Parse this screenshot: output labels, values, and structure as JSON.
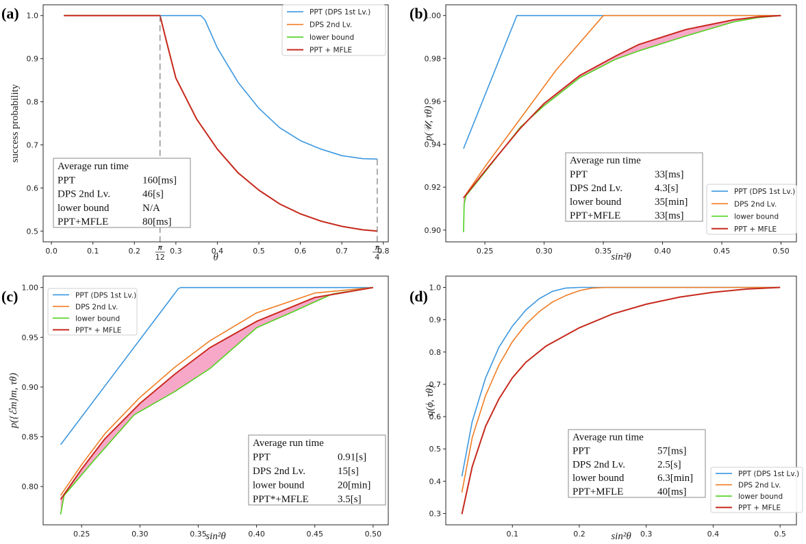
{
  "colors": {
    "ppt": "#3b97e0",
    "dps": "#f07b22",
    "lower": "#4fd11e",
    "mfle": "#c8281e",
    "shade": "#f7a8c8"
  },
  "chart_data": [
    {
      "panel": "(a)",
      "type": "line",
      "xlabel": "θ",
      "ylabel": "success probability",
      "xlim": [
        -0.02,
        0.812
      ],
      "ylim": [
        0.475,
        1.025
      ],
      "xticks": [
        0.0,
        0.1,
        0.2,
        0.3,
        0.4,
        0.5,
        0.6,
        0.7,
        0.8
      ],
      "yticks": [
        0.5,
        0.6,
        0.7,
        0.8,
        0.9,
        1.0
      ],
      "xtick_labels": [
        "0.0",
        "0.1",
        "0.2",
        "0.3",
        "0.4",
        "0.5",
        "0.6",
        "0.7",
        "0.8"
      ],
      "ytick_labels": [
        "0.5",
        "0.6",
        "0.7",
        "0.8",
        "0.9",
        "1.0"
      ],
      "special_ticks": [
        {
          "x": 0.2618,
          "label": "π/12"
        },
        {
          "x": 0.7854,
          "label": "π/4"
        }
      ],
      "legend_position": "top-right",
      "legend": [
        "PPT (DPS 1st Lv.)",
        "DPS 2nd Lv.",
        "lower bound",
        "PPT + MFLE"
      ],
      "series": [
        {
          "name": "PPT (DPS 1st Lv.)",
          "color_key": "ppt",
          "x": [
            0.03,
            0.2618,
            0.36,
            0.37,
            0.4,
            0.45,
            0.5,
            0.55,
            0.6,
            0.65,
            0.7,
            0.75,
            0.7854
          ],
          "y": [
            1.0,
            1.0,
            1.0,
            0.99,
            0.925,
            0.845,
            0.785,
            0.74,
            0.71,
            0.69,
            0.675,
            0.668,
            0.667
          ]
        },
        {
          "name": "DPS 2nd Lv.",
          "color_key": "dps",
          "x": [
            0.03,
            0.2618,
            0.28,
            0.3,
            0.35,
            0.4,
            0.45,
            0.5,
            0.55,
            0.6,
            0.65,
            0.7,
            0.75,
            0.7854
          ],
          "y": [
            1.0,
            1.0,
            0.93,
            0.855,
            0.76,
            0.69,
            0.635,
            0.595,
            0.563,
            0.54,
            0.523,
            0.511,
            0.503,
            0.5
          ]
        },
        {
          "name": "lower bound",
          "color_key": "lower",
          "x": [
            0.03,
            0.2618,
            0.28,
            0.3,
            0.35,
            0.4,
            0.45,
            0.5,
            0.55,
            0.6,
            0.65,
            0.7,
            0.75,
            0.7854
          ],
          "y": [
            1.0,
            1.0,
            0.93,
            0.855,
            0.76,
            0.69,
            0.635,
            0.595,
            0.563,
            0.54,
            0.523,
            0.511,
            0.503,
            0.5
          ]
        },
        {
          "name": "PPT + MFLE",
          "color_key": "mfle",
          "x": [
            0.03,
            0.2618,
            0.28,
            0.3,
            0.35,
            0.4,
            0.45,
            0.5,
            0.55,
            0.6,
            0.65,
            0.7,
            0.75,
            0.7854
          ],
          "y": [
            1.0,
            1.0,
            0.93,
            0.855,
            0.76,
            0.69,
            0.635,
            0.595,
            0.563,
            0.54,
            0.523,
            0.511,
            0.503,
            0.5
          ]
        }
      ],
      "dashed_markers": [
        {
          "x": 0.2618,
          "y_top": 1.0
        },
        {
          "x": 0.7854,
          "y_top": 0.667
        }
      ],
      "runtime_table": {
        "title": "Average run time",
        "position": "bottom-left",
        "rows": [
          [
            "PPT",
            "160[ms]"
          ],
          [
            "DPS 2nd Lv.",
            "46[s]"
          ],
          [
            "lower bound",
            "N/A"
          ],
          [
            "PPT+MFLE",
            "80[ms]"
          ]
        ]
      }
    },
    {
      "panel": "(b)",
      "type": "line",
      "xlabel": "sin²θ",
      "ylabel": "p(𝒰, τθ)",
      "xlim": [
        0.217,
        0.513
      ],
      "ylim": [
        0.8945,
        1.005
      ],
      "xticks": [
        0.25,
        0.3,
        0.35,
        0.4,
        0.45,
        0.5
      ],
      "yticks": [
        0.9,
        0.92,
        0.94,
        0.96,
        0.98,
        1.0
      ],
      "xtick_labels": [
        "0.25",
        "0.30",
        "0.35",
        "0.40",
        "0.45",
        "0.50"
      ],
      "ytick_labels": [
        "0.90",
        "0.92",
        "0.94",
        "0.96",
        "0.98",
        "1.00"
      ],
      "legend_position": "bottom-right",
      "legend": [
        "PPT (DPS 1st Lv.)",
        "DPS 2nd Lv.",
        "lower bound",
        "PPT + MFLE"
      ],
      "shaded_between": [
        "PPT + MFLE",
        "lower bound"
      ],
      "series": [
        {
          "name": "PPT (DPS 1st Lv.)",
          "color_key": "ppt",
          "x": [
            0.232,
            0.277,
            0.5
          ],
          "y": [
            0.938,
            1.0,
            1.0
          ]
        },
        {
          "name": "DPS 2nd Lv.",
          "color_key": "dps",
          "x": [
            0.232,
            0.25,
            0.28,
            0.31,
            0.35,
            0.4,
            0.45,
            0.5
          ],
          "y": [
            0.915,
            0.9295,
            0.952,
            0.9745,
            1.0,
            1.0,
            1.0,
            1.0
          ]
        },
        {
          "name": "lower bound",
          "color_key": "lower",
          "x": [
            0.232,
            0.2325,
            0.234,
            0.25,
            0.28,
            0.3,
            0.33,
            0.36,
            0.38,
            0.42,
            0.46,
            0.48,
            0.5
          ],
          "y": [
            0.899,
            0.912,
            0.916,
            0.927,
            0.948,
            0.958,
            0.971,
            0.9795,
            0.9835,
            0.9905,
            0.997,
            0.999,
            1.0
          ]
        },
        {
          "name": "PPT + MFLE",
          "color_key": "mfle",
          "x": [
            0.232,
            0.25,
            0.28,
            0.3,
            0.33,
            0.36,
            0.38,
            0.42,
            0.46,
            0.48,
            0.5
          ],
          "y": [
            0.915,
            0.9275,
            0.9475,
            0.959,
            0.972,
            0.981,
            0.9865,
            0.9935,
            0.998,
            0.9993,
            1.0
          ]
        }
      ],
      "runtime_table": {
        "title": "Average run time",
        "position": "center-right",
        "rows": [
          [
            "PPT",
            "33[ms]"
          ],
          [
            "DPS 2nd Lv.",
            "4.3[s]"
          ],
          [
            "lower bound",
            "35[min]"
          ],
          [
            "PPT+MFLE",
            "33[ms]"
          ]
        ]
      }
    },
    {
      "panel": "(c)",
      "type": "line",
      "xlabel": "sin²θ",
      "ylabel": "p({ℰm}m, τθ)",
      "xlim": [
        0.217,
        0.513
      ],
      "ylim": [
        0.7615,
        1.0115
      ],
      "xticks": [
        0.25,
        0.3,
        0.35,
        0.4,
        0.45,
        0.5
      ],
      "yticks": [
        0.8,
        0.85,
        0.9,
        0.95,
        1.0
      ],
      "xtick_labels": [
        "0.25",
        "0.30",
        "0.35",
        "0.40",
        "0.45",
        "0.50"
      ],
      "ytick_labels": [
        "0.80",
        "0.85",
        "0.90",
        "0.95",
        "1.00"
      ],
      "legend_position": "top-left",
      "legend": [
        "PPT (DPS 1st Lv.)",
        "DPS 2nd Lv.",
        "lower bound",
        "PPT* + MFLE"
      ],
      "shaded_between": [
        "PPT* + MFLE",
        "lower bound"
      ],
      "series": [
        {
          "name": "PPT (DPS 1st Lv.)",
          "color_key": "ppt",
          "x": [
            0.232,
            0.333,
            0.335,
            0.5
          ],
          "y": [
            0.842,
            0.999,
            1.0,
            1.0
          ]
        },
        {
          "name": "DPS 2nd Lv.",
          "color_key": "dps",
          "x": [
            0.232,
            0.25,
            0.27,
            0.3,
            0.33,
            0.36,
            0.4,
            0.45,
            0.5
          ],
          "y": [
            0.791,
            0.822,
            0.853,
            0.8895,
            0.92,
            0.9465,
            0.9745,
            0.9945,
            1.0
          ]
        },
        {
          "name": "lower bound",
          "color_key": "lower",
          "x": [
            0.232,
            0.235,
            0.26,
            0.295,
            0.33,
            0.36,
            0.4,
            0.43,
            0.465,
            0.5
          ],
          "y": [
            0.772,
            0.791,
            0.8255,
            0.872,
            0.8955,
            0.9185,
            0.9595,
            0.975,
            0.9935,
            1.0
          ]
        },
        {
          "name": "PPT* + MFLE",
          "color_key": "mfle",
          "x": [
            0.232,
            0.25,
            0.27,
            0.3,
            0.33,
            0.36,
            0.4,
            0.45,
            0.5
          ],
          "y": [
            0.787,
            0.8175,
            0.848,
            0.8835,
            0.913,
            0.9395,
            0.966,
            0.99,
            1.0
          ]
        }
      ],
      "runtime_table": {
        "title": "Average run time",
        "position": "bottom-right",
        "rows": [
          [
            "PPT",
            "0.91[s]"
          ],
          [
            "DPS 2nd Lv.",
            "15[s]"
          ],
          [
            "lower bound",
            "20[min]"
          ],
          [
            "PPT*+MFLE",
            "3.5[s]"
          ]
        ]
      }
    },
    {
      "panel": "(d)",
      "type": "line",
      "xlabel": "sin²θ",
      "ylabel": "q(ϕ, τθ)",
      "xlim": [
        0.0005,
        0.5244
      ],
      "ylim": [
        0.265,
        1.035
      ],
      "xticks": [
        0.1,
        0.2,
        0.3,
        0.4,
        0.5
      ],
      "yticks": [
        0.3,
        0.4,
        0.5,
        0.6,
        0.7,
        0.8,
        0.9,
        1.0
      ],
      "xtick_labels": [
        "0.1",
        "0.2",
        "0.3",
        "0.4",
        "0.5"
      ],
      "ytick_labels": [
        "0.3",
        "0.4",
        "0.5",
        "0.6",
        "0.7",
        "0.8",
        "0.9",
        "1.0"
      ],
      "legend_position": "bottom-right",
      "legend": [
        "PPT (DPS 1st Lv.)",
        "DPS 2nd Lv.",
        "lower bound",
        "PPT + MFLE"
      ],
      "series": [
        {
          "name": "PPT (DPS 1st Lv.)",
          "color_key": "ppt",
          "x": [
            0.0245,
            0.04,
            0.06,
            0.08,
            0.1,
            0.12,
            0.14,
            0.16,
            0.18,
            0.2,
            0.22,
            0.5
          ],
          "y": [
            0.415,
            0.585,
            0.72,
            0.815,
            0.88,
            0.93,
            0.965,
            0.988,
            0.998,
            1.0,
            1.0,
            1.0
          ]
        },
        {
          "name": "DPS 2nd Lv.",
          "color_key": "dps",
          "x": [
            0.0245,
            0.04,
            0.06,
            0.08,
            0.1,
            0.12,
            0.14,
            0.16,
            0.18,
            0.2,
            0.22,
            0.24,
            0.5
          ],
          "y": [
            0.365,
            0.535,
            0.665,
            0.76,
            0.832,
            0.885,
            0.925,
            0.955,
            0.975,
            0.99,
            0.998,
            1.0,
            1.0
          ]
        },
        {
          "name": "lower bound",
          "color_key": "lower",
          "x": [
            0.0245,
            0.04,
            0.06,
            0.08,
            0.1,
            0.12,
            0.15,
            0.2,
            0.25,
            0.3,
            0.35,
            0.4,
            0.45,
            0.5
          ],
          "y": [
            0.298,
            0.445,
            0.57,
            0.655,
            0.72,
            0.768,
            0.818,
            0.875,
            0.918,
            0.948,
            0.97,
            0.985,
            0.995,
            1.0
          ]
        },
        {
          "name": "PPT + MFLE",
          "color_key": "mfle",
          "x": [
            0.0245,
            0.04,
            0.06,
            0.08,
            0.1,
            0.12,
            0.15,
            0.2,
            0.25,
            0.3,
            0.35,
            0.4,
            0.45,
            0.5
          ],
          "y": [
            0.298,
            0.445,
            0.57,
            0.655,
            0.72,
            0.768,
            0.818,
            0.875,
            0.918,
            0.948,
            0.97,
            0.985,
            0.995,
            1.0
          ]
        }
      ],
      "runtime_table": {
        "title": "Average run time",
        "position": "bottom-center",
        "rows": [
          [
            "PPT",
            "57[ms]"
          ],
          [
            "DPS 2nd Lv.",
            "2.5[s]"
          ],
          [
            "lower bound",
            "6.3[min]"
          ],
          [
            "PPT+MFLE",
            "40[ms]"
          ]
        ]
      }
    }
  ]
}
